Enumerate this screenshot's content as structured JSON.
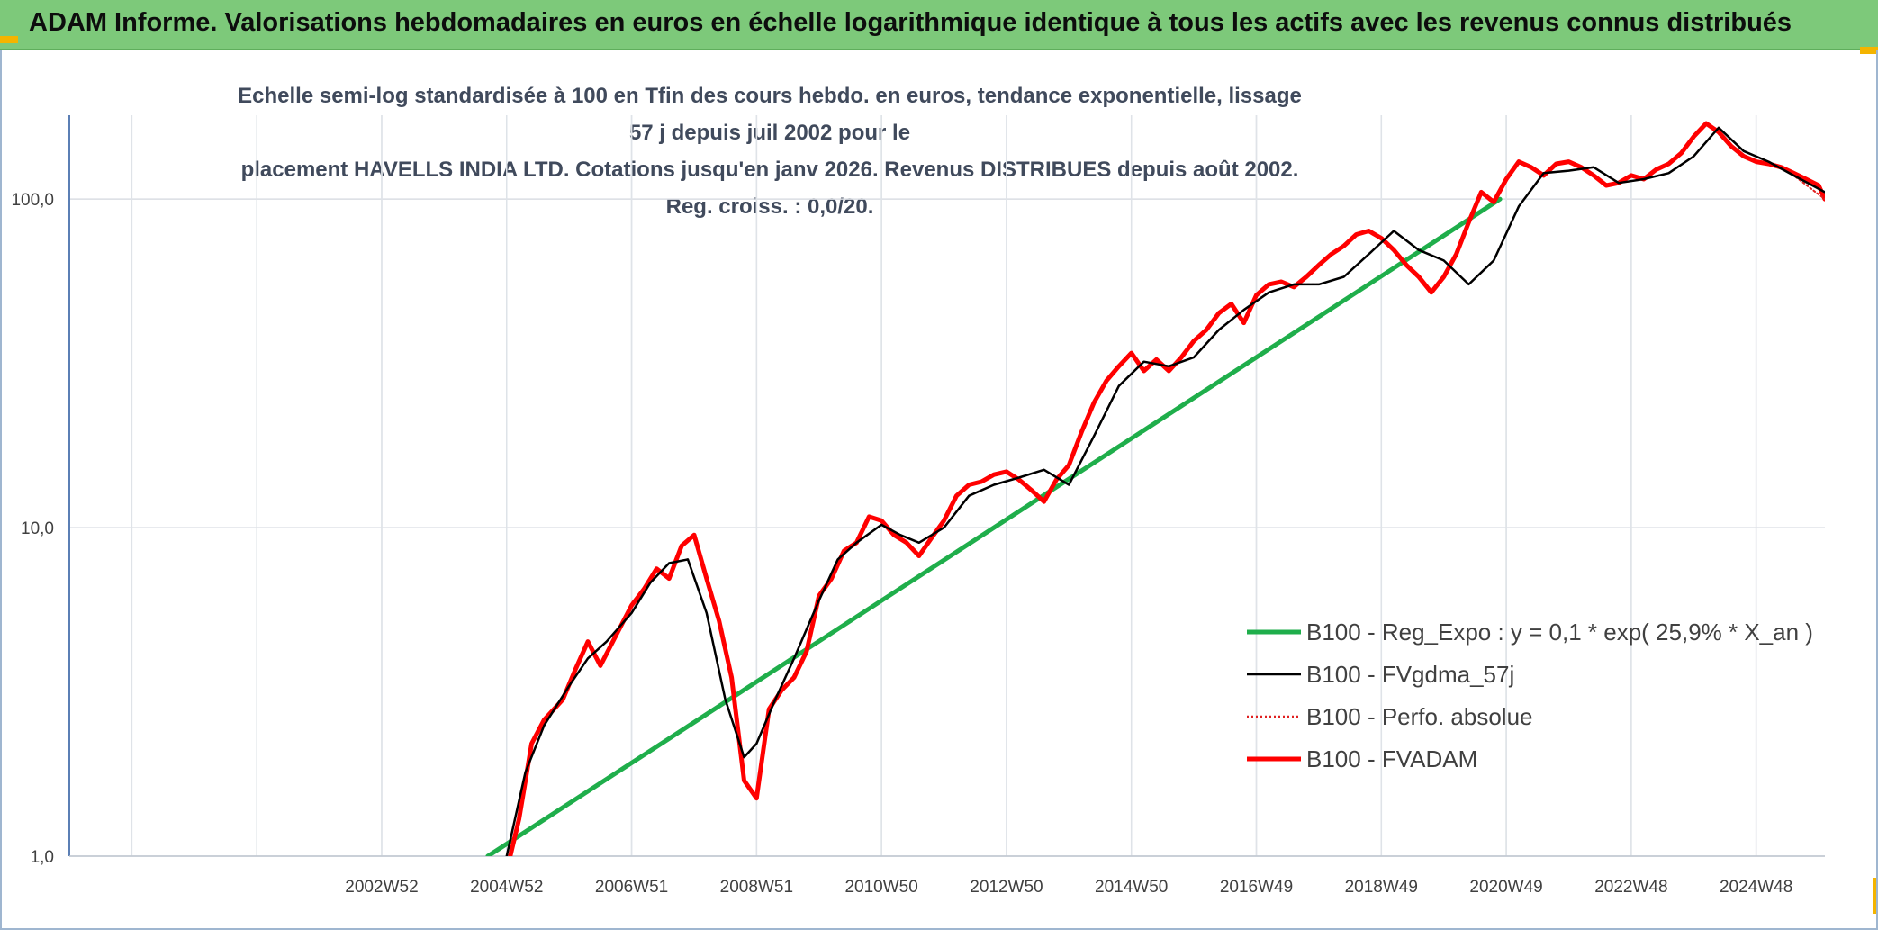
{
  "header": {
    "title": "ADAM Informe. Valorisations hebdomadaires en euros en échelle logarithmique identique à tous les actifs avec les revenus connus distribués"
  },
  "chart_data": {
    "type": "line",
    "title_lines": [
      "Echelle semi-log standardisée à 100 en Tfin des cours hebdo. en euros, tendance exponentielle, lissage 57 j depuis juil 2002 pour le",
      "placement HAVELLS INDIA LTD. Cotations jusqu'en janv 2026. Revenus DISTRIBUES depuis août 2002. Reg. croiss. : 0,0/20."
    ],
    "y_scale": "log",
    "ylim": [
      1,
      180
    ],
    "y_ticks": [
      {
        "value": 1,
        "label": "1,0"
      },
      {
        "value": 10,
        "label": "10,0"
      },
      {
        "value": 100,
        "label": "100,0"
      }
    ],
    "xlim": [
      1998.0,
      2026.1
    ],
    "x_ticks": [
      {
        "value": 2003.0,
        "label": "2002W52"
      },
      {
        "value": 2005.0,
        "label": "2004W52"
      },
      {
        "value": 2007.0,
        "label": "2006W51"
      },
      {
        "value": 2009.0,
        "label": "2008W51"
      },
      {
        "value": 2011.0,
        "label": "2010W50"
      },
      {
        "value": 2013.0,
        "label": "2012W50"
      },
      {
        "value": 2015.0,
        "label": "2014W50"
      },
      {
        "value": 2017.0,
        "label": "2016W49"
      },
      {
        "value": 2019.0,
        "label": "2018W49"
      },
      {
        "value": 2021.0,
        "label": "2020W49"
      },
      {
        "value": 2023.0,
        "label": "2022W48"
      },
      {
        "value": 2025.0,
        "label": "2024W48"
      }
    ],
    "grid": true,
    "legend_position": "bottom-right",
    "series": [
      {
        "name": "B100 - Reg_Expo : y = 0,1 * exp( 25,9% *  X_an )",
        "color": "#1fae4b",
        "style": "solid",
        "x": [
          2004.7,
          2020.9
        ],
        "y": [
          1.0,
          100.0
        ]
      },
      {
        "name": "B100 - FVgdma_57j",
        "color": "#000000",
        "style": "solid",
        "x": [
          2005.0,
          2005.3,
          2005.6,
          2006.0,
          2006.3,
          2006.6,
          2007.0,
          2007.3,
          2007.6,
          2007.9,
          2008.2,
          2008.5,
          2008.8,
          2009.0,
          2009.3,
          2009.6,
          2010.0,
          2010.3,
          2010.6,
          2011.0,
          2011.3,
          2011.6,
          2012.0,
          2012.4,
          2012.8,
          2013.2,
          2013.6,
          2014.0,
          2014.4,
          2014.8,
          2015.2,
          2015.6,
          2016.0,
          2016.4,
          2016.8,
          2017.2,
          2017.6,
          2018.0,
          2018.4,
          2018.8,
          2019.2,
          2019.6,
          2020.0,
          2020.4,
          2020.8,
          2021.2,
          2021.6,
          2022.0,
          2022.4,
          2022.8,
          2023.2,
          2023.6,
          2024.0,
          2024.4,
          2024.8,
          2025.2,
          2025.6,
          2026.1
        ],
        "y": [
          1.0,
          1.8,
          2.5,
          3.3,
          4.0,
          4.5,
          5.5,
          6.8,
          7.8,
          8.0,
          5.5,
          3.0,
          2.0,
          2.2,
          3.0,
          4.0,
          6.0,
          8.0,
          9.0,
          10.2,
          9.5,
          9.0,
          10.0,
          12.5,
          13.5,
          14.2,
          15.0,
          13.5,
          19.0,
          27.0,
          32.0,
          31.0,
          33.0,
          40.0,
          46.0,
          52.0,
          55.0,
          55.0,
          58.0,
          68.0,
          80.0,
          70.0,
          65.0,
          55.0,
          65.0,
          95.0,
          120.0,
          122.0,
          125.0,
          112.0,
          115.0,
          120.0,
          135.0,
          165.0,
          140.0,
          130.0,
          118.0,
          105.0
        ]
      },
      {
        "name": "B100 - Perfo. absolue",
        "color": "#e02020",
        "style": "dotted",
        "x": [
          2005.0,
          2005.3,
          2005.6,
          2006.0,
          2006.3,
          2006.6,
          2007.0,
          2007.3,
          2007.6,
          2007.9,
          2008.2,
          2008.5,
          2008.8,
          2009.0,
          2009.3,
          2009.6,
          2010.0,
          2010.3,
          2010.6,
          2011.0,
          2011.3,
          2011.6,
          2012.0,
          2012.4,
          2012.8,
          2013.2,
          2013.6,
          2014.0,
          2014.4,
          2014.8,
          2015.2,
          2015.6,
          2016.0,
          2016.4,
          2016.8,
          2017.2,
          2017.6,
          2018.0,
          2018.4,
          2018.8,
          2019.2,
          2019.6,
          2020.0,
          2020.4,
          2020.8,
          2021.2,
          2021.6,
          2022.0,
          2022.4,
          2022.8,
          2023.2,
          2023.6,
          2024.0,
          2024.4,
          2024.8,
          2025.2,
          2025.6,
          2026.1
        ],
        "y": [
          1.0,
          1.8,
          2.5,
          3.3,
          4.0,
          4.5,
          5.5,
          6.8,
          7.8,
          8.0,
          5.5,
          3.0,
          2.0,
          2.2,
          3.0,
          4.0,
          6.0,
          8.0,
          9.0,
          10.2,
          9.5,
          9.0,
          10.0,
          12.5,
          13.5,
          14.2,
          15.0,
          13.5,
          19.0,
          27.0,
          32.0,
          31.0,
          33.0,
          40.0,
          46.0,
          52.0,
          55.0,
          55.0,
          58.0,
          68.0,
          80.0,
          70.0,
          65.0,
          55.0,
          65.0,
          95.0,
          120.0,
          122.0,
          125.0,
          112.0,
          115.0,
          120.0,
          135.0,
          165.0,
          140.0,
          130.0,
          118.0,
          100.0
        ]
      },
      {
        "name": "B100 - FVADAM",
        "color": "#ff0000",
        "style": "solid",
        "x": [
          2005.0,
          2005.2,
          2005.4,
          2005.6,
          2005.9,
          2006.1,
          2006.3,
          2006.5,
          2006.7,
          2007.0,
          2007.2,
          2007.4,
          2007.6,
          2007.8,
          2008.0,
          2008.2,
          2008.4,
          2008.6,
          2008.8,
          2009.0,
          2009.2,
          2009.4,
          2009.6,
          2009.8,
          2010.0,
          2010.2,
          2010.4,
          2010.6,
          2010.8,
          2011.0,
          2011.2,
          2011.4,
          2011.6,
          2011.8,
          2012.0,
          2012.2,
          2012.4,
          2012.6,
          2012.8,
          2013.0,
          2013.2,
          2013.4,
          2013.6,
          2013.8,
          2014.0,
          2014.2,
          2014.4,
          2014.6,
          2014.8,
          2015.0,
          2015.2,
          2015.4,
          2015.6,
          2015.8,
          2016.0,
          2016.2,
          2016.4,
          2016.6,
          2016.8,
          2017.0,
          2017.2,
          2017.4,
          2017.6,
          2017.8,
          2018.0,
          2018.2,
          2018.4,
          2018.6,
          2018.8,
          2019.0,
          2019.2,
          2019.4,
          2019.6,
          2019.8,
          2020.0,
          2020.2,
          2020.4,
          2020.6,
          2020.8,
          2021.0,
          2021.2,
          2021.4,
          2021.6,
          2021.8,
          2022.0,
          2022.2,
          2022.4,
          2022.6,
          2022.8,
          2023.0,
          2023.2,
          2023.4,
          2023.6,
          2023.8,
          2024.0,
          2024.2,
          2024.4,
          2024.6,
          2024.8,
          2025.0,
          2025.2,
          2025.4,
          2025.6,
          2025.8,
          2026.0,
          2026.1
        ],
        "y": [
          0.9,
          1.3,
          2.2,
          2.6,
          3.0,
          3.7,
          4.5,
          3.8,
          4.5,
          5.8,
          6.5,
          7.5,
          7.0,
          8.8,
          9.5,
          7.0,
          5.2,
          3.5,
          1.7,
          1.5,
          2.8,
          3.2,
          3.5,
          4.2,
          6.2,
          7.0,
          8.5,
          9.0,
          10.8,
          10.5,
          9.5,
          9.0,
          8.2,
          9.3,
          10.5,
          12.5,
          13.5,
          13.8,
          14.5,
          14.8,
          14.0,
          13.0,
          12.0,
          14.0,
          15.5,
          19.5,
          24.0,
          28.0,
          31.0,
          34.0,
          30.0,
          32.5,
          30.0,
          33.0,
          37.0,
          40.0,
          45.0,
          48.0,
          42.0,
          51.0,
          55.0,
          56.0,
          54.0,
          58.0,
          63.0,
          68.0,
          72.0,
          78.0,
          80.0,
          76.0,
          70.0,
          63.0,
          58.0,
          52.0,
          58.0,
          68.0,
          85.0,
          105.0,
          98.0,
          115.0,
          130.0,
          125.0,
          118.0,
          128.0,
          130.0,
          125.0,
          118.0,
          110.0,
          112.0,
          118.0,
          115.0,
          123.0,
          128.0,
          138.0,
          155.0,
          170.0,
          160.0,
          145.0,
          135.0,
          130.0,
          128.0,
          125.0,
          120.0,
          115.0,
          110.0,
          100.0
        ]
      }
    ]
  }
}
